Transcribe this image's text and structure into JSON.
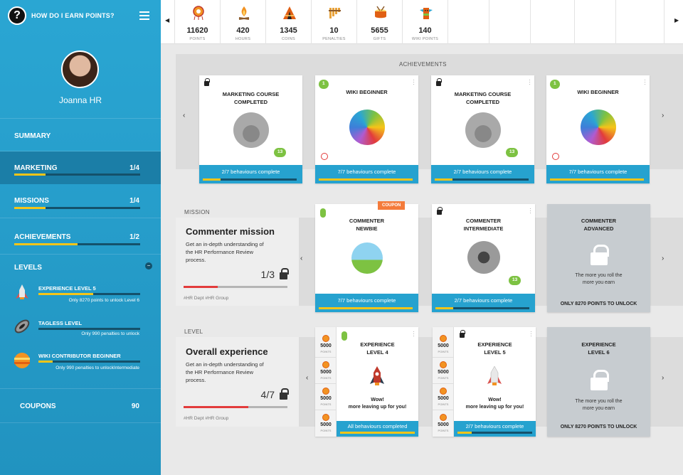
{
  "sidebar": {
    "help_icon": "?",
    "help_text": "HOW DO I EARN POINTS?",
    "menu_icon": "hamburger-icon",
    "user_name": "Joanna HR",
    "summary": "SUMMARY",
    "marketing": {
      "label": "MARKETING",
      "count": "1/4",
      "progress": 0.25
    },
    "missions": {
      "label": "MISSIONS",
      "count": "1/4",
      "progress": 0.25
    },
    "achievements": {
      "label": "ACHIEVEMENTS",
      "count": "1/2",
      "progress": 0.5
    },
    "levels_label": "LEVELS",
    "levels": [
      {
        "name": "EXPERIENCE LEVEL 5",
        "sub": "Only 8270 points to unlock Level 6",
        "progress": 0.54
      },
      {
        "name": "TAGLESS LEVEL",
        "sub": "Only 990 penalties to unlock",
        "progress": 0.0
      },
      {
        "name": "WIKI CONTRIBUTOR BEGINNER",
        "sub": "Only 990 penalties to unlockIntermediate",
        "progress": 0.14
      }
    ],
    "coupons": {
      "label": "COUPONS",
      "count": "90"
    }
  },
  "stats": [
    {
      "value": "11620",
      "label": "POINTS",
      "icon": "dreamcatcher-icon"
    },
    {
      "value": "420",
      "label": "HOURS",
      "icon": "campfire-icon"
    },
    {
      "value": "1345",
      "label": "COINS",
      "icon": "teepee-icon"
    },
    {
      "value": "10",
      "label": "PENALTIES",
      "icon": "pan-flute-icon"
    },
    {
      "value": "5655",
      "label": "GIFTS",
      "icon": "drum-icon"
    },
    {
      "value": "140",
      "label": "WIKI POINTS",
      "icon": "totem-icon"
    }
  ],
  "achievements": {
    "heading": "ACHIEVEMENTS",
    "cards": [
      {
        "title1": "MARKETING COURSE",
        "title2": "COMPLETED",
        "pill": "13",
        "footer": "2/7 behaviours complete",
        "progress": 0.19
      },
      {
        "title1": "WIKI BEGINNER",
        "title2": "",
        "badge": "1",
        "footer": "7/7 behaviours complete",
        "progress": 1
      },
      {
        "title1": "MARKETING COURSE",
        "title2": "COMPLETED",
        "pill": "13",
        "footer": "2/7 behaviours complete",
        "progress": 0.19
      },
      {
        "title1": "WIKI BEGINNER",
        "title2": "",
        "badge": "1",
        "footer": "7/7 behaviours complete",
        "progress": 1
      }
    ]
  },
  "mission": {
    "heading": "MISSION",
    "title": "Commenter mission",
    "desc": "Get an in-depth understanding of the HR Performance Review process.",
    "fraction": "1/3",
    "progress": 0.33,
    "tags": "#HR Dept  #HR Group",
    "cards": [
      {
        "title1": "COMMENTER",
        "title2": "NEWBIE",
        "ribbon": "COUPON",
        "footer": "7/7 behaviours complete",
        "progress": 1
      },
      {
        "title1": "COMMENTER",
        "title2": "INTERMEDIATE",
        "pill": "13",
        "footer": "2/7 behaviours complete",
        "progress": 0.19
      },
      {
        "title1": "COMMENTER",
        "title2": "ADVANCED",
        "text1": "The more you roll the",
        "text2": "more you earn",
        "footer": "ONLY 8270 POINTS TO UNLOCK"
      }
    ]
  },
  "level": {
    "heading": "LEVEL",
    "title": "Overall experience",
    "desc": "Get an in-depth understanding of the HR Performance Review process.",
    "fraction": "4/7",
    "progress": 0.62,
    "tags": "#HR Dept  #HR Group",
    "points": [
      {
        "v": "5000",
        "l": "POINTS"
      },
      {
        "v": "5000",
        "l": "POINTS"
      },
      {
        "v": "5000",
        "l": "POINTS"
      },
      {
        "v": "5000",
        "l": "POINTS"
      }
    ],
    "cards": [
      {
        "title1": "EXPERIENCE",
        "title2": "LEVEL 4",
        "msg1": "Wow!",
        "msg2": "more leaving up for you!",
        "footer": "All behaviours completed",
        "progress": 1
      },
      {
        "title1": "EXPERIENCE",
        "title2": "LEVEL 5",
        "msg1": "Wow!",
        "msg2": "more leaving up for you!",
        "footer": "2/7 behaviours complete",
        "progress": 0.19
      },
      {
        "title1": "EXPERIENCE",
        "title2": "LEVEL 6",
        "text1": "The more you roll the",
        "text2": "more you earn",
        "footer": "ONLY 8270 POINTS TO UNLOCK"
      }
    ]
  },
  "arrows": {
    "left": "‹",
    "right": "›",
    "tb_left": "◀",
    "tb_right": "▶"
  },
  "colors": {
    "accent": "#26a2cf",
    "sidebar": "#2aa6d3",
    "progress": "#f5c518",
    "mission_progress": "#e23b3b",
    "unlock": "#7dc242"
  }
}
